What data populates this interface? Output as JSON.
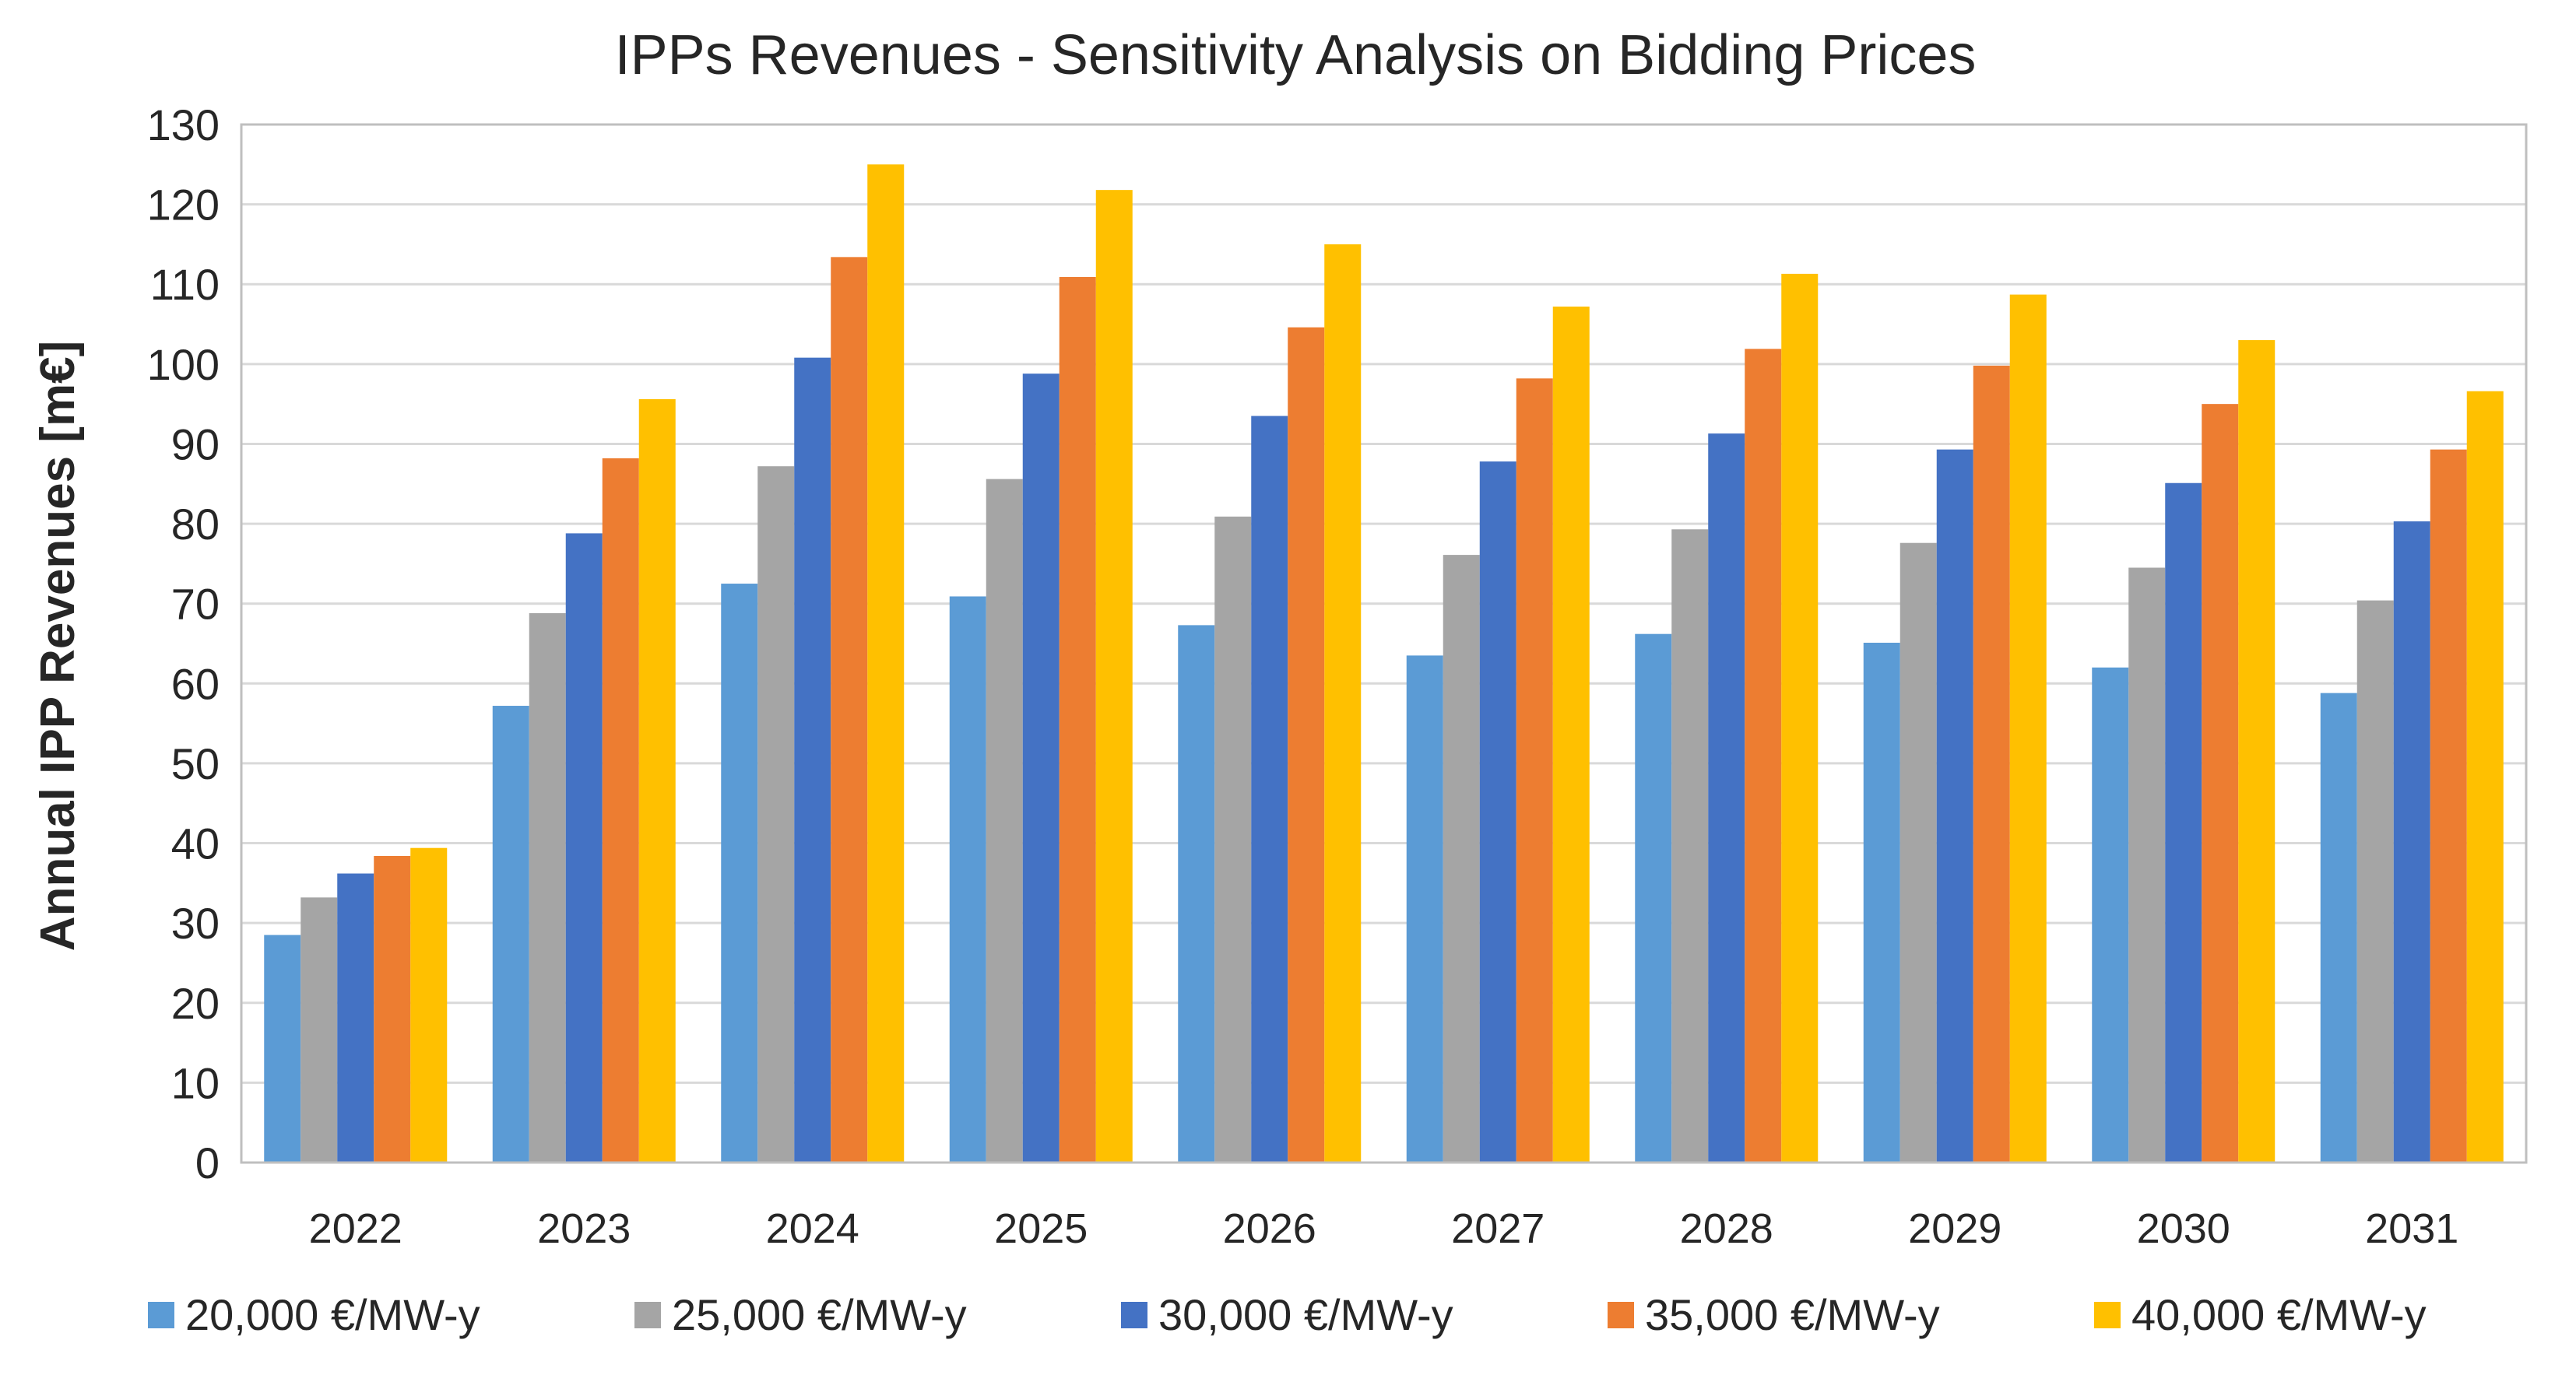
{
  "chart_data": {
    "type": "bar",
    "title": "IPPs Revenues - Sensitivity Analysis on Bidding Prices",
    "xlabel": "",
    "ylabel": "Annual IPP Revenues [m€]",
    "ylim": [
      0,
      130
    ],
    "yticks": [
      0,
      10,
      20,
      30,
      40,
      50,
      60,
      70,
      80,
      90,
      100,
      110,
      120,
      130
    ],
    "grid": true,
    "legend_position": "bottom",
    "categories": [
      "2022",
      "2023",
      "2024",
      "2025",
      "2026",
      "2027",
      "2028",
      "2029",
      "2030",
      "2031"
    ],
    "series": [
      {
        "name": "20,000 €/MW-y",
        "color": "#5b9bd5",
        "values": [
          28.5,
          57.2,
          72.5,
          70.9,
          67.3,
          63.5,
          66.2,
          65.1,
          62.0,
          58.8
        ]
      },
      {
        "name": "25,000 €/MW-y",
        "color": "#a5a5a5",
        "values": [
          33.2,
          68.8,
          87.2,
          85.6,
          80.9,
          76.1,
          79.3,
          77.6,
          74.5,
          70.4
        ]
      },
      {
        "name": "30,000 €/MW-y",
        "color": "#4472c4",
        "values": [
          36.2,
          78.8,
          100.8,
          98.8,
          93.5,
          87.8,
          91.3,
          89.3,
          85.1,
          80.3
        ]
      },
      {
        "name": "35,000 €/MW-y",
        "color": "#ed7d31",
        "values": [
          38.4,
          88.2,
          113.4,
          110.9,
          104.6,
          98.2,
          101.9,
          99.8,
          95.0,
          89.3
        ]
      },
      {
        "name": "40,000 €/MW-y",
        "color": "#ffc000",
        "values": [
          39.4,
          95.6,
          125.0,
          121.8,
          115.0,
          107.2,
          111.3,
          108.7,
          103.0,
          96.6
        ]
      }
    ]
  }
}
